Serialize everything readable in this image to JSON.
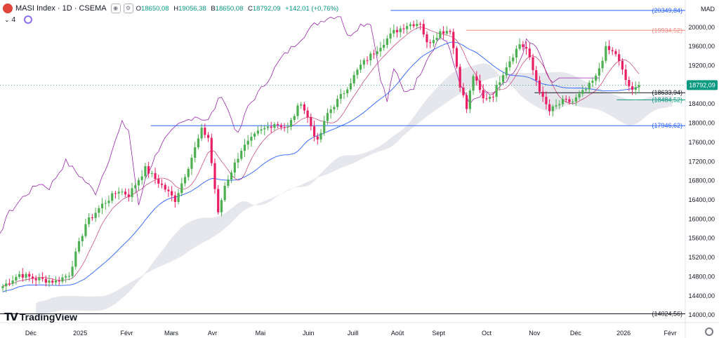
{
  "header": {
    "symbol": "MASI Index · 1D · CSEMA",
    "ohlc": [
      {
        "k": "O",
        "v": "18650,08"
      },
      {
        "k": "H",
        "v": "19056,38"
      },
      {
        "k": "B",
        "v": "18650,08"
      },
      {
        "k": "C",
        "v": "18792,09"
      },
      {
        "k": "",
        "v": "+142,01 (+0,76%)"
      }
    ],
    "indicator_count": "4",
    "currency": "MAD",
    "brand": "TradingView"
  },
  "colors": {
    "up": "#089981",
    "up_candle": "#4caf50",
    "down": "#e91e63",
    "blue": "#2962ff",
    "red_line": "#f28b82",
    "ichimoku": "#d1d4dc",
    "magenta": "#9c27b0",
    "kijun": "#2962ff",
    "tenkan": "#c2185b"
  },
  "chart_data": {
    "type": "candlestick",
    "ylim": [
      13900,
      20450
    ],
    "y_ticks": [
      "20000,00",
      "19600,00",
      "19200,00",
      "18800,00",
      "18400,00",
      "18000,00",
      "17600,00",
      "17200,00",
      "16800,00",
      "16400,00",
      "16000,00",
      "15600,00",
      "15200,00",
      "14800,00",
      "14400,00",
      "14000,00"
    ],
    "y_tick_values": [
      20000,
      19600,
      19200,
      18800,
      18400,
      18000,
      17600,
      17200,
      16800,
      16400,
      16000,
      15600,
      15200,
      14800,
      14400,
      14000
    ],
    "x_ticks": [
      {
        "label": "Déc",
        "pos": 0.045
      },
      {
        "label": "2025",
        "pos": 0.117
      },
      {
        "label": "Févr",
        "pos": 0.185
      },
      {
        "label": "Mars",
        "pos": 0.25
      },
      {
        "label": "Avr",
        "pos": 0.31
      },
      {
        "label": "Mai",
        "pos": 0.38
      },
      {
        "label": "Juin",
        "pos": 0.45
      },
      {
        "label": "Juill",
        "pos": 0.515
      },
      {
        "label": "Août",
        "pos": 0.58
      },
      {
        "label": "Sept",
        "pos": 0.64
      },
      {
        "label": "Oct",
        "pos": 0.71
      },
      {
        "label": "Nov",
        "pos": 0.78
      },
      {
        "label": "Déc",
        "pos": 0.84
      },
      {
        "label": "2026",
        "pos": 0.91
      },
      {
        "label": "Févr",
        "pos": 0.978
      }
    ],
    "hlines": [
      {
        "value": 20349.84,
        "label": "(20349,84)",
        "color": "#2962ff",
        "from": 0.57
      },
      {
        "value": 19934.52,
        "label": "(19934,52)",
        "color": "#f28b82",
        "from": 0.68
      },
      {
        "value": 18633.94,
        "label": "(18633,94)",
        "color": "#131722",
        "from": 0.78
      },
      {
        "value": 18484.52,
        "label": "(18484,52)",
        "color": "#089981",
        "from": 0.9
      },
      {
        "value": 17946.62,
        "label": "(17946,62)",
        "color": "#2962ff",
        "from": 0.22
      },
      {
        "value": 14024.56,
        "label": "(14024,56)",
        "color": "#131722",
        "from": 0.0
      }
    ],
    "last_price": {
      "value": 18792.09,
      "label": "18792,09"
    },
    "anchors": [
      [
        0,
        14600
      ],
      [
        5,
        14850
      ],
      [
        10,
        14750
      ],
      [
        16,
        14700
      ],
      [
        20,
        14850
      ],
      [
        25,
        15900
      ],
      [
        30,
        16300
      ],
      [
        35,
        16600
      ],
      [
        38,
        16500
      ],
      [
        43,
        17050
      ],
      [
        48,
        16700
      ],
      [
        52,
        16400
      ],
      [
        56,
        17100
      ],
      [
        60,
        17850
      ],
      [
        62,
        17700
      ],
      [
        65,
        16100
      ],
      [
        67,
        16700
      ],
      [
        72,
        17450
      ],
      [
        77,
        17800
      ],
      [
        82,
        18000
      ],
      [
        86,
        17900
      ],
      [
        90,
        18450
      ],
      [
        95,
        17600
      ],
      [
        98,
        18200
      ],
      [
        103,
        18650
      ],
      [
        108,
        19200
      ],
      [
        113,
        19550
      ],
      [
        118,
        19900
      ],
      [
        122,
        20050
      ],
      [
        126,
        20100
      ],
      [
        128,
        19650
      ],
      [
        132,
        19900
      ],
      [
        135,
        19950
      ],
      [
        138,
        18800
      ],
      [
        140,
        18300
      ],
      [
        142,
        19000
      ],
      [
        145,
        18500
      ],
      [
        148,
        18600
      ],
      [
        152,
        19200
      ],
      [
        156,
        19650
      ],
      [
        158,
        19550
      ],
      [
        160,
        19100
      ],
      [
        163,
        18500
      ],
      [
        165,
        18250
      ],
      [
        169,
        18450
      ],
      [
        172,
        18450
      ],
      [
        176,
        18700
      ],
      [
        179,
        18950
      ],
      [
        182,
        19550
      ],
      [
        185,
        19450
      ],
      [
        188,
        18900
      ],
      [
        190,
        18650
      ],
      [
        192,
        18792.09
      ]
    ]
  }
}
